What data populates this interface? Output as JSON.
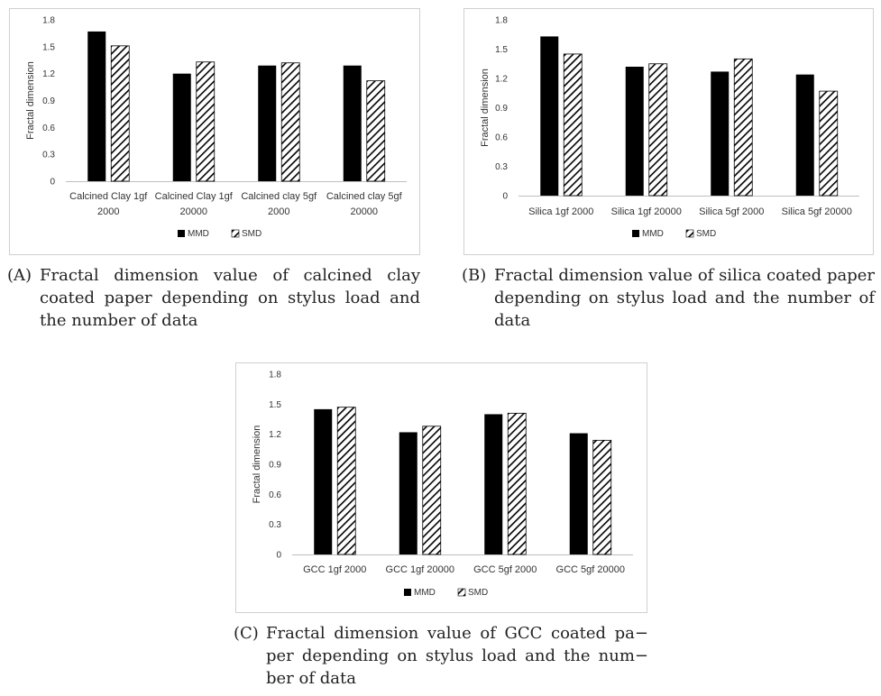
{
  "colors": {
    "mmd": "#000000",
    "smd_stroke": "#000000",
    "axis": "#bfbfbf",
    "frame": "#d0d0d0"
  },
  "chart_data": [
    {
      "id": "A",
      "type": "bar",
      "ylabel": "Fractal dimension",
      "ylim": [
        0,
        1.8
      ],
      "yticks": [
        "1.8",
        "1.5",
        "1.2",
        "0.9",
        "0.6",
        "0.3",
        "0"
      ],
      "categories": [
        [
          "Calcined Clay 1gf",
          "2000"
        ],
        [
          "Calcined Clay 1gf",
          "20000"
        ],
        [
          "Calcined clay 5gf",
          "2000"
        ],
        [
          "Calcined clay 5gf",
          "20000"
        ]
      ],
      "series": [
        {
          "name": "MMD",
          "values": [
            1.67,
            1.2,
            1.29,
            1.29
          ]
        },
        {
          "name": "SMD",
          "values": [
            1.51,
            1.33,
            1.32,
            1.12
          ]
        }
      ],
      "legend": [
        "MMD",
        "SMD"
      ],
      "caption_label": "(A)",
      "caption": "Fractal dimension value of calcined clay coated paper depending on stylus load and the number of data"
    },
    {
      "id": "B",
      "type": "bar",
      "ylabel": "Fractal dimension",
      "ylim": [
        0,
        1.8
      ],
      "yticks": [
        "1.8",
        "1.5",
        "1.2",
        "0.9",
        "0.6",
        "0.3",
        "0"
      ],
      "categories": [
        [
          "Silica 1gf 2000"
        ],
        [
          "Silica 1gf 20000"
        ],
        [
          "Silica 5gf 2000"
        ],
        [
          "Silica 5gf 20000"
        ]
      ],
      "series": [
        {
          "name": "MMD",
          "values": [
            1.63,
            1.32,
            1.27,
            1.24
          ]
        },
        {
          "name": "SMD",
          "values": [
            1.45,
            1.35,
            1.4,
            1.07
          ]
        }
      ],
      "legend": [
        "MMD",
        "SMD"
      ],
      "caption_label": "(B)",
      "caption": "Fractal dimension value of silica coated paper depending on stylus load and the number of data"
    },
    {
      "id": "C",
      "type": "bar",
      "ylabel": "Fractal dimension",
      "ylim": [
        0,
        1.8
      ],
      "yticks": [
        "1.8",
        "1.5",
        "1.2",
        "0.9",
        "0.6",
        "0.3",
        "0"
      ],
      "categories": [
        [
          "GCC 1gf 2000"
        ],
        [
          "GCC 1gf 20000"
        ],
        [
          "GCC 5gf 2000"
        ],
        [
          "GCC 5gf 20000"
        ]
      ],
      "series": [
        {
          "name": "MMD",
          "values": [
            1.45,
            1.22,
            1.4,
            1.21
          ]
        },
        {
          "name": "SMD",
          "values": [
            1.47,
            1.28,
            1.41,
            1.14
          ]
        }
      ],
      "legend": [
        "MMD",
        "SMD"
      ],
      "caption_label": "(C)",
      "caption": "Fractal dimension value of GCC coated pa− per depending on stylus load and the num− ber of data"
    }
  ]
}
